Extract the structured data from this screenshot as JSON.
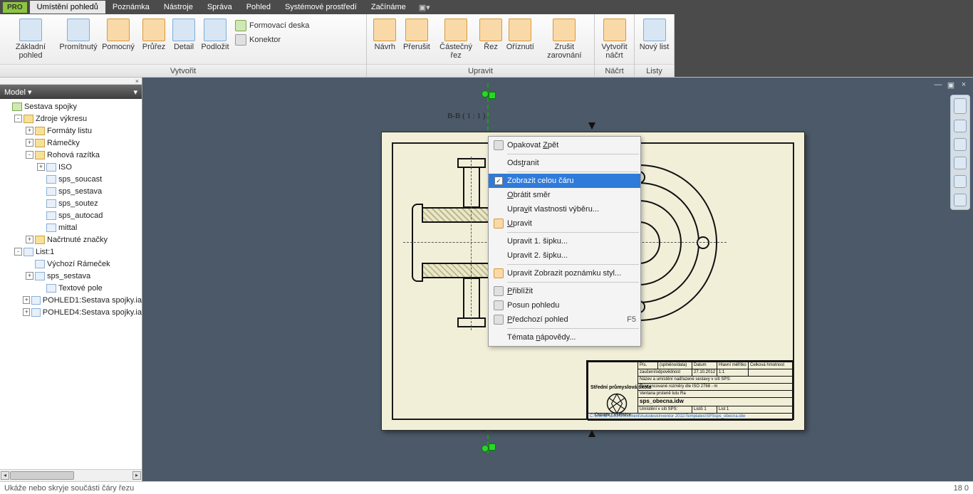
{
  "menu": {
    "badge": "PRO",
    "items": [
      "Umístění pohledů",
      "Poznámka",
      "Nástroje",
      "Správa",
      "Pohled",
      "Systémové prostředí",
      "Začínáme"
    ],
    "active_index": 0,
    "toggle_glyph": "▣▾"
  },
  "ribbon": {
    "groups": [
      {
        "label": "Vytvořit",
        "big": [
          {
            "t": "Základní pohled"
          },
          {
            "t": "Promítnutý"
          },
          {
            "t": "Pomocný"
          },
          {
            "t": "Průřez"
          },
          {
            "t": "Detail"
          },
          {
            "t": "Podložit"
          }
        ],
        "small": [
          {
            "t": "Formovací deska"
          },
          {
            "t": "Konektor"
          }
        ]
      },
      {
        "label": "Upravit",
        "big": [
          {
            "t": "Návrh"
          },
          {
            "t": "Přerušit"
          },
          {
            "t": "Částečný řez"
          },
          {
            "t": "Řez"
          },
          {
            "t": "Oříznutí"
          },
          {
            "t": "Zrušit zarovnání"
          }
        ]
      },
      {
        "label": "Náčrt",
        "big": [
          {
            "t": "Vytvořit náčrt"
          }
        ]
      },
      {
        "label": "Listy",
        "big": [
          {
            "t": "Nový list"
          }
        ]
      }
    ]
  },
  "browser": {
    "title": "Model ▾",
    "close": "×",
    "nodes": [
      {
        "d": 0,
        "e": "",
        "i": "root",
        "t": "Sestava spojky"
      },
      {
        "d": 1,
        "e": "-",
        "i": "folder",
        "t": "Zdroje výkresu"
      },
      {
        "d": 2,
        "e": "+",
        "i": "folder",
        "t": "Formáty listu"
      },
      {
        "d": 2,
        "e": "+",
        "i": "folder",
        "t": "Rámečky"
      },
      {
        "d": 2,
        "e": "-",
        "i": "folder",
        "t": "Rohová razítka"
      },
      {
        "d": 3,
        "e": "+",
        "i": "doc",
        "t": "ISO"
      },
      {
        "d": 3,
        "e": "",
        "i": "doc",
        "t": "sps_soucast"
      },
      {
        "d": 3,
        "e": "",
        "i": "doc",
        "t": "sps_sestava"
      },
      {
        "d": 3,
        "e": "",
        "i": "doc",
        "t": "sps_soutez"
      },
      {
        "d": 3,
        "e": "",
        "i": "doc",
        "t": "sps_autocad"
      },
      {
        "d": 3,
        "e": "",
        "i": "doc",
        "t": "mittal"
      },
      {
        "d": 2,
        "e": "+",
        "i": "folder",
        "t": "Načrtnuté značky"
      },
      {
        "d": 1,
        "e": "-",
        "i": "doc",
        "t": "List:1"
      },
      {
        "d": 2,
        "e": "",
        "i": "doc",
        "t": "Výchozí Rámeček"
      },
      {
        "d": 2,
        "e": "+",
        "i": "doc",
        "t": "sps_sestava"
      },
      {
        "d": 3,
        "e": "",
        "i": "doc",
        "t": "Textové pole"
      },
      {
        "d": 2,
        "e": "+",
        "i": "doc",
        "t": "POHLED1:Sestava spojky.ia"
      },
      {
        "d": 2,
        "e": "+",
        "i": "doc",
        "t": "POHLED4:Sestava spojky.ia"
      }
    ]
  },
  "canvas": {
    "section_label": "B-B ( 1 : 1 )",
    "titleblock": {
      "school": "Střední průmyslová škola",
      "city": "Ostrava - Vítkovice",
      "file": "sps_obecna.idw",
      "r1a": "Pís.",
      "r1b": "(splněno/data)",
      "r1c": "Datum",
      "r1d": "Hlavní měřítko",
      "r1e": "Celková hmotnost",
      "r2a": "zaučení/odpovědnost",
      "r2b": "27.10.2012",
      "r2c": "1:1",
      "r3": "Název a umístění nadřazené sestavy v síti SPS:",
      "r4": "Tolerancované rozměry dle ISO 2768 - m",
      "r5": "Ventana prsteně tutu Ra",
      "r6a": "Umístění v síti SPS:",
      "r6b": "Listů   1",
      "r6c": "List   1",
      "r7": "C:\\LiteraPublishDocument\\AutodeskInventor 2011\\Templates\\SPSsps_obecna.idw"
    }
  },
  "context_menu": {
    "items": [
      {
        "icon": "undo",
        "label": "Opakovat Zpět",
        "u": "Z"
      },
      {
        "sep": true
      },
      {
        "label": "Odstranit",
        "u": "t"
      },
      {
        "sep": true
      },
      {
        "check": true,
        "label": "Zobrazit celou čáru",
        "hl": true
      },
      {
        "label": "Obrátit směr",
        "u": "O"
      },
      {
        "label": "Upravit vlastnosti výběru...",
        "u": "v"
      },
      {
        "icon": "edit",
        "label": "Upravit",
        "u": "U"
      },
      {
        "sep": true
      },
      {
        "label": "Upravit 1. šipku..."
      },
      {
        "label": "Upravit 2. šipku..."
      },
      {
        "sep": true
      },
      {
        "icon": "style",
        "label": "Upravit Zobrazit poznámku styl..."
      },
      {
        "sep": true
      },
      {
        "icon": "zoom",
        "label": "Přiblížit",
        "u": "P"
      },
      {
        "icon": "pan",
        "label": "Posun pohledu"
      },
      {
        "icon": "prev",
        "label": "Předchozí pohled",
        "u": "P",
        "sc": "F5"
      },
      {
        "sep": true
      },
      {
        "label": "Témata nápovědy...",
        "u": "n"
      }
    ]
  },
  "status": {
    "left": "Ukáže nebo skryje součásti čáry řezu",
    "right": "18    0"
  },
  "window_controls": [
    "—",
    "▣",
    "×"
  ]
}
